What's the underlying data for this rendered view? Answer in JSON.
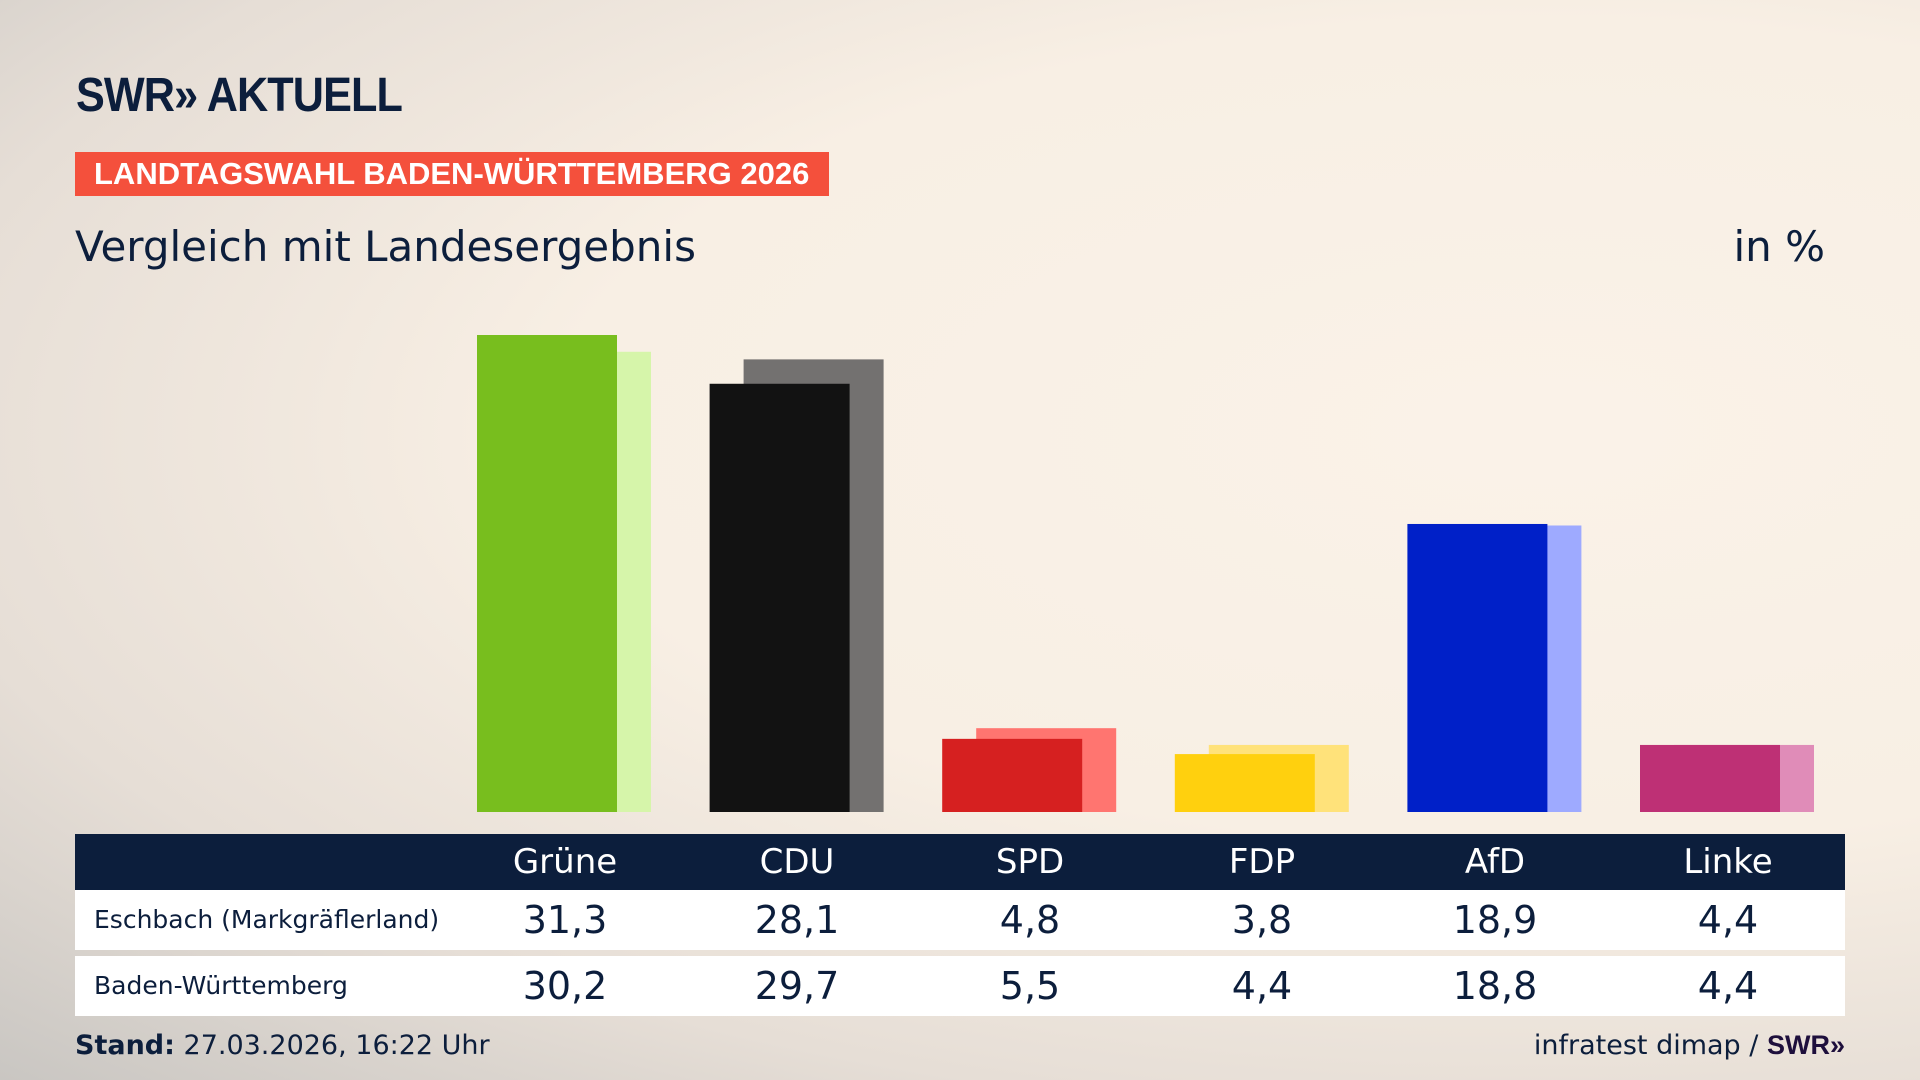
{
  "header": {
    "logo": "SWR» AKTUELL",
    "banner": "LANDTAGSWAHL BADEN-WÜRTTEMBERG 2026",
    "subtitle": "Vergleich mit Landesergebnis",
    "unit": "in %"
  },
  "chart_data": {
    "type": "bar",
    "title": "Vergleich mit Landesergebnis",
    "ylabel": "in %",
    "categories": [
      "Grüne",
      "CDU",
      "SPD",
      "FDP",
      "AfD",
      "Linke"
    ],
    "series": [
      {
        "name": "Eschbach (Markgräflerland)",
        "values": [
          31.3,
          28.1,
          4.8,
          3.8,
          18.9,
          4.4
        ]
      },
      {
        "name": "Baden-Württemberg",
        "values": [
          30.2,
          29.7,
          5.5,
          4.4,
          18.8,
          4.4
        ]
      }
    ],
    "colors_main": [
      "#78be1e",
      "#121212",
      "#d62020",
      "#ffd00e",
      "#0020c8",
      "#be3075"
    ],
    "colors_light": [
      "#d6f5aa",
      "#737170",
      "#ff7570",
      "#ffe27a",
      "#9eaaff",
      "#e08cb8"
    ],
    "ylim": [
      0,
      31.3
    ],
    "grid": false,
    "legend": "table-below"
  },
  "table": {
    "headers": [
      "Grüne",
      "CDU",
      "SPD",
      "FDP",
      "AfD",
      "Linke"
    ],
    "rows": [
      {
        "label": "Eschbach (Markgräflerland)",
        "values": [
          "31,3",
          "28,1",
          "4,8",
          "3,8",
          "18,9",
          "4,4"
        ]
      },
      {
        "label": "Baden-Württemberg",
        "values": [
          "30,2",
          "29,7",
          "5,5",
          "4,4",
          "18,8",
          "4,4"
        ]
      }
    ]
  },
  "footer": {
    "stand_label": "Stand:",
    "stand_value": "27.03.2026, 16:22 Uhr",
    "source": "infratest dimap /",
    "source_logo": "SWR»"
  }
}
